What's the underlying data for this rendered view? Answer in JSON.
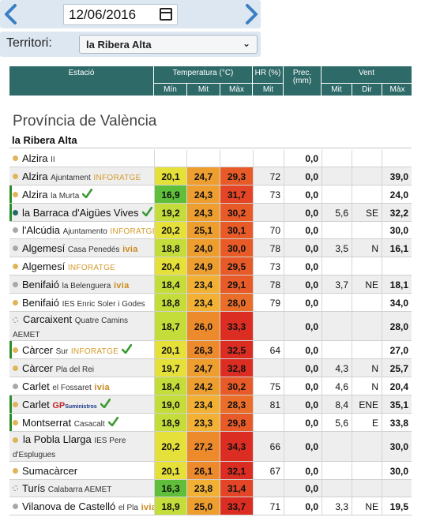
{
  "controls": {
    "date": "12/06/2016",
    "territori_label": "Territori:",
    "territori_value": "la Ribera Alta"
  },
  "header": {
    "estacio": "Estació",
    "temperatura": "Temperatura (°C)",
    "t_min": "Mín",
    "t_mit": "Mit",
    "t_max": "Màx",
    "hr": "HR (%)",
    "hr_mit": "Mit",
    "prec": "Prec.",
    "prec_unit": "(mm)",
    "vent": "Vent",
    "v_mit": "Mit",
    "v_dir": "Dir",
    "v_max": "Màx"
  },
  "province": "Província de València",
  "comarca": "la Ribera Alta",
  "colors": {
    "header": "#2e6a68",
    "dot_orange": "#e0b45a",
    "dot_grey": "#a8a8a8",
    "dot_teal": "#1f6a63",
    "bar_green": "#2d8d2d",
    "check_green": "#3c9a33"
  },
  "rows": [
    {
      "name": "Alzira",
      "sub": "II",
      "brand": "",
      "dot": "orange",
      "check": false,
      "min": "",
      "mit": "",
      "max": "",
      "hr": "",
      "prec": "0,0",
      "vmit": "",
      "dir": "",
      "vmax": ""
    },
    {
      "name": "Alzira",
      "sub": "Ajuntament",
      "brand": "INFORATGE",
      "dot": "orange",
      "check": false,
      "min": "20,1",
      "mit": "24,7",
      "max": "29,3",
      "hr": "72",
      "prec": "0,0",
      "vmit": "",
      "dir": "",
      "vmax": "39,0"
    },
    {
      "name": "Alzira",
      "sub": "la Murta",
      "brand": "",
      "dot": "orange",
      "check": true,
      "min": "16,9",
      "mit": "24,3",
      "max": "31,7",
      "hr": "73",
      "prec": "0,0",
      "vmit": "",
      "dir": "",
      "vmax": "24,0"
    },
    {
      "name": "la Barraca d'Aigües Vives",
      "sub": "",
      "brand": "",
      "dot": "teal",
      "check": true,
      "min": "19,2",
      "mit": "24,3",
      "max": "30,2",
      "hr": "",
      "prec": "0,0",
      "vmit": "5,6",
      "dir": "SE",
      "vmax": "32,2"
    },
    {
      "name": "l'Alcúdia",
      "sub": "Ajuntamento",
      "brand": "INFORATGE",
      "dot": "grey",
      "check": false,
      "min": "20,2",
      "mit": "25,1",
      "max": "30,1",
      "hr": "70",
      "prec": "0,0",
      "vmit": "",
      "dir": "",
      "vmax": "30,0"
    },
    {
      "name": "Algemesí",
      "sub": "Casa Penedés",
      "brand": "ivia",
      "dot": "grey",
      "check": false,
      "min": "18,8",
      "mit": "24,0",
      "max": "30,0",
      "hr": "78",
      "prec": "0,0",
      "vmit": "3,5",
      "dir": "N",
      "vmax": "16,1"
    },
    {
      "name": "Algemesí",
      "sub": "",
      "brand": "INFORATGE",
      "dot": "orange",
      "check": false,
      "min": "20,4",
      "mit": "24,9",
      "max": "29,5",
      "hr": "73",
      "prec": "0,0",
      "vmit": "",
      "dir": "",
      "vmax": ""
    },
    {
      "name": "Benifaió",
      "sub": "la Belenguera",
      "brand": "ivia",
      "dot": "grey",
      "check": false,
      "min": "18,4",
      "mit": "23,4",
      "max": "29,1",
      "hr": "78",
      "prec": "0,0",
      "vmit": "3,7",
      "dir": "NE",
      "vmax": "18,1"
    },
    {
      "name": "Benifaió",
      "sub": "IES Enric Soler i Godes",
      "brand": "",
      "dot": "orange",
      "check": false,
      "min": "18,8",
      "mit": "23,4",
      "max": "28,0",
      "hr": "79",
      "prec": "0,0",
      "vmit": "",
      "dir": "",
      "vmax": "34,0"
    },
    {
      "name": "Carcaixent",
      "sub": "Quatre Camins",
      "brand": "",
      "line2": "AEMET",
      "dot": "hollow",
      "check": false,
      "min": "18,7",
      "mit": "26,0",
      "max": "33,3",
      "hr": "",
      "prec": "0,0",
      "vmit": "",
      "dir": "",
      "vmax": "28,0"
    },
    {
      "name": "Càrcer",
      "sub": "Sur",
      "brand": "INFORATGE",
      "dot": "orange",
      "check": true,
      "min": "20,1",
      "mit": "26,3",
      "max": "32,5",
      "hr": "64",
      "prec": "0,0",
      "vmit": "",
      "dir": "",
      "vmax": "27,0"
    },
    {
      "name": "Càrcer",
      "sub": "Pla del Rei",
      "brand": "",
      "dot": "orange",
      "check": false,
      "min": "19,7",
      "mit": "24,7",
      "max": "32,8",
      "hr": "",
      "prec": "0,0",
      "vmit": "4,3",
      "dir": "N",
      "vmax": "25,7"
    },
    {
      "name": "Carlet",
      "sub": "el Fossaret",
      "brand": "ivia",
      "dot": "grey",
      "check": false,
      "min": "18,4",
      "mit": "24,2",
      "max": "30,2",
      "hr": "75",
      "prec": "0,0",
      "vmit": "4,6",
      "dir": "N",
      "vmax": "20,4"
    },
    {
      "name": "Carlet",
      "sub": "",
      "brand": "GP",
      "dot": "orange",
      "check": true,
      "min": "19,0",
      "mit": "23,4",
      "max": "28,3",
      "hr": "81",
      "prec": "0,0",
      "vmit": "8,4",
      "dir": "ENE",
      "vmax": "35,1"
    },
    {
      "name": "Montserrat",
      "sub": "Casacalt",
      "brand": "",
      "dot": "orange",
      "check": true,
      "min": "18,9",
      "mit": "23,3",
      "max": "29,8",
      "hr": "",
      "prec": "0,0",
      "vmit": "5,6",
      "dir": "E",
      "vmax": "33,8"
    },
    {
      "name": "la Pobla Llarga",
      "sub": "IES Pere",
      "brand": "",
      "line2": "d'Esplugues",
      "dot": "orange",
      "check": false,
      "min": "20,2",
      "mit": "27,2",
      "max": "34,3",
      "hr": "66",
      "prec": "0,0",
      "vmit": "",
      "dir": "",
      "vmax": "30,0"
    },
    {
      "name": "Sumacàrcer",
      "sub": "",
      "brand": "",
      "dot": "orange",
      "check": false,
      "min": "20,1",
      "mit": "26,1",
      "max": "32,1",
      "hr": "67",
      "prec": "0,0",
      "vmit": "",
      "dir": "",
      "vmax": "30,0"
    },
    {
      "name": "Turís",
      "sub": "Calabarra AEMET",
      "brand": "",
      "dot": "hollow",
      "check": false,
      "min": "16,3",
      "mit": "23,8",
      "max": "31,4",
      "hr": "",
      "prec": "0,0",
      "vmit": "",
      "dir": "",
      "vmax": ""
    },
    {
      "name": "Vilanova de Castelló",
      "sub": "el Pla",
      "brand": "ivia",
      "dot": "grey",
      "check": false,
      "min": "18,9",
      "mit": "25,0",
      "max": "33,7",
      "hr": "71",
      "prec": "0,0",
      "vmit": "3,3",
      "dir": "NE",
      "vmax": "19,5"
    }
  ]
}
